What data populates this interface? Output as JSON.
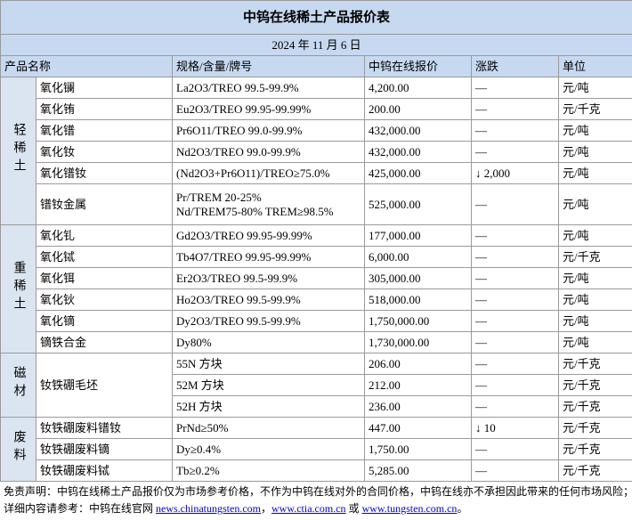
{
  "header": {
    "title": "中钨在线稀土产品报价表",
    "date": "2024 年 11 月 6 日"
  },
  "table": {
    "columns": [
      "产品名称",
      "规格/含量/牌号",
      "中钨在线报价",
      "涨跌",
      "单位"
    ],
    "groups": [
      {
        "label": "轻稀土",
        "rows": [
          {
            "name": "氧化镧",
            "spec": "La2O3/TREO 99.5-99.9%",
            "price": "4,200.00",
            "change": "—",
            "unit": "元/吨"
          },
          {
            "name": "氧化铕",
            "spec": "Eu2O3/TREO 99.95-99.99%",
            "price": "200.00",
            "change": "—",
            "unit": "元/千克"
          },
          {
            "name": "氧化镨",
            "spec": "Pr6O11/TREO 99.0-99.9%",
            "price": "432,000.00",
            "change": "—",
            "unit": "元/吨"
          },
          {
            "name": "氧化钕",
            "spec": "Nd2O3/TREO 99.0-99.9%",
            "price": "432,000.00",
            "change": "—",
            "unit": "元/吨"
          },
          {
            "name": "氧化镨钕",
            "spec": "(Nd2O3+Pr6O11)/TREO≥75.0%",
            "price": "425,000.00",
            "change": "↓ 2,000",
            "unit": "元/吨"
          },
          {
            "name": "镨钕金属",
            "spec": [
              "Pr/TREM 20-25%",
              "Nd/TREM75-80% TREM≥98.5%"
            ],
            "price": "525,000.00",
            "change": "—",
            "unit": "元/吨"
          }
        ]
      },
      {
        "label": "重稀土",
        "rows": [
          {
            "name": "氧化钆",
            "spec": "Gd2O3/TREO 99.95-99.99%",
            "price": "177,000.00",
            "change": "—",
            "unit": "元/吨"
          },
          {
            "name": "氧化铽",
            "spec": "Tb4O7/TREO 99.95-99.99%",
            "price": "6,000.00",
            "change": "—",
            "unit": "元/千克"
          },
          {
            "name": "氧化铒",
            "spec": "Er2O3/TREO 99.5-99.9%",
            "price": "305,000.00",
            "change": "—",
            "unit": "元/吨"
          },
          {
            "name": "氧化钬",
            "spec": "Ho2O3/TREO 99.5-99.9%",
            "price": "518,000.00",
            "change": "—",
            "unit": "元/吨"
          },
          {
            "name": "氧化镝",
            "spec": "Dy2O3/TREO 99.5-99.9%",
            "price": "1,750,000.00",
            "change": "—",
            "unit": "元/吨"
          },
          {
            "name": "镝铁合金",
            "spec": "Dy80%",
            "price": "1,730,000.00",
            "change": "—",
            "unit": "元/吨"
          }
        ]
      },
      {
        "label": "磁材",
        "shared_name": "钕铁硼毛坯",
        "rows": [
          {
            "spec": "55N 方块",
            "price": "206.00",
            "change": "—",
            "unit": "元/千克"
          },
          {
            "spec": "52M 方块",
            "price": "212.00",
            "change": "—",
            "unit": "元/千克"
          },
          {
            "spec": "52H 方块",
            "price": "236.00",
            "change": "—",
            "unit": "元/千克"
          }
        ]
      },
      {
        "label": "废料",
        "rows": [
          {
            "name": "钕铁硼废料镨钕",
            "spec": "PrNd≥50%",
            "price": "447.00",
            "change": "↓ 10",
            "unit": "元/千克"
          },
          {
            "name": "钕铁硼废料镝",
            "spec": "Dy≥0.4%",
            "price": "1,750.00",
            "change": "—",
            "unit": "元/千克"
          },
          {
            "name": "钕铁硼废料铽",
            "spec": "Tb≥0.2%",
            "price": "5,285.00",
            "change": "—",
            "unit": "元/千克"
          }
        ]
      }
    ]
  },
  "footer": {
    "disclaimer": "免责声明：中钨在线稀土产品报价仅为市场参考价格，不作为中钨在线对外的合同价格，中钨在线亦不承担因此带来的任何市场风险；",
    "reference": [
      {
        "text": "详细内容请参考：中钨在线官网 "
      },
      {
        "text": "news.chinatungsten.com",
        "link": true
      },
      {
        "text": "，"
      },
      {
        "text": "www.ctia.com.cn",
        "link": true
      },
      {
        "text": " 或 "
      },
      {
        "text": "www.tungsten.com.cn",
        "link": true
      },
      {
        "text": "。"
      }
    ]
  }
}
